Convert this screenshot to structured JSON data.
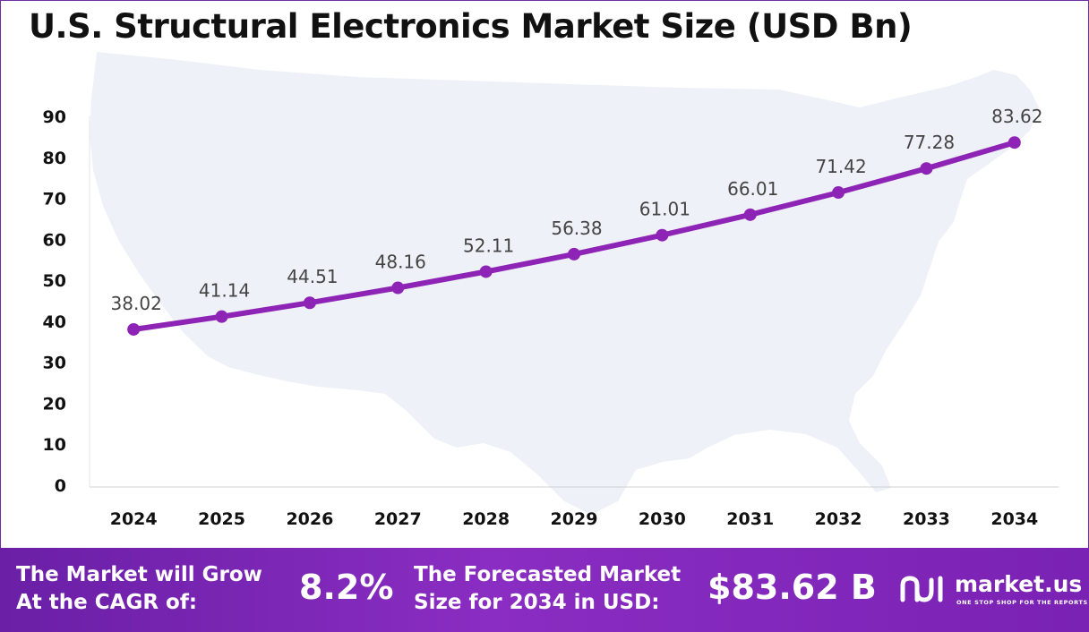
{
  "title": "U.S. Structural Electronics Market Size (USD Bn)",
  "chart_data": {
    "type": "line",
    "title": "U.S. Structural Electronics Market Size (USD Bn)",
    "categories": [
      "2024",
      "2025",
      "2026",
      "2027",
      "2028",
      "2029",
      "2030",
      "2031",
      "2032",
      "2033",
      "2034"
    ],
    "series": [
      {
        "values": [
          38.02,
          41.14,
          44.51,
          48.16,
          52.11,
          56.38,
          61.01,
          66.01,
          71.42,
          77.28,
          83.62
        ]
      }
    ],
    "value_labels": [
      "38.02",
      "41.14",
      "44.51",
      "48.16",
      "52.11",
      "56.38",
      "61.01",
      "66.01",
      "71.42",
      "77.28",
      "83.62"
    ],
    "yticks": [
      "0",
      "10",
      "20",
      "30",
      "40",
      "50",
      "60",
      "70",
      "80",
      "90"
    ],
    "ylim": [
      0,
      90
    ],
    "grid": false,
    "line_color": "#8e24b6",
    "background_map": "United States silhouette"
  },
  "footer": {
    "cagr_label_line1": "The Market will Grow",
    "cagr_label_line2": "At the CAGR of:",
    "cagr_value": "8.2%",
    "forecast_label_line1": "The Forecasted Market",
    "forecast_label_line2": "Size for 2034 in USD:",
    "forecast_value": "$83.62 B",
    "brand_name": "market.us",
    "brand_tagline": "ONE STOP SHOP FOR THE REPORTS"
  },
  "colors": {
    "accent": "#8e24b6",
    "footer_bg": "#7a22b4",
    "map_fill": "#eef2f8"
  }
}
